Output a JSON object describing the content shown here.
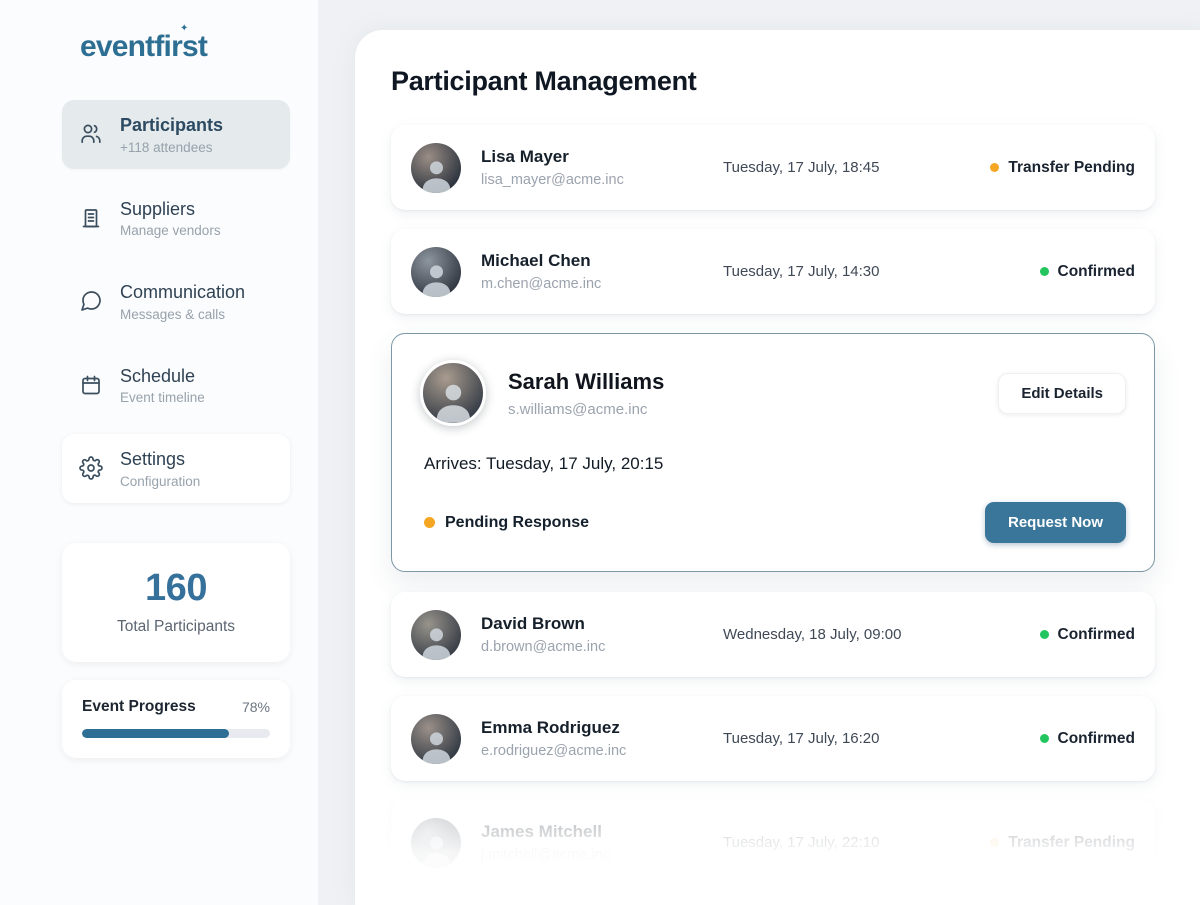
{
  "sidebar": {
    "logo": "eventfirst",
    "nav": [
      {
        "label": "Participants",
        "sublabel": "+118 attendees",
        "icon": "people-icon"
      },
      {
        "label": "Suppliers",
        "sublabel": "Manage vendors",
        "icon": "building-icon"
      },
      {
        "label": "Communication",
        "sublabel": "Messages & calls",
        "icon": "chat-icon"
      },
      {
        "label": "Schedule",
        "sublabel": "Event timeline",
        "icon": "calendar-icon"
      },
      {
        "label": "Settings",
        "sublabel": "Configuration",
        "icon": "gear-icon"
      }
    ],
    "stats": {
      "value": "160",
      "label": "Total Participants"
    },
    "progress": {
      "label": "Event Progress",
      "percent": 78,
      "percent_label": "78%"
    }
  },
  "main": {
    "title": "Participant Management",
    "rows": [
      {
        "name": "Lisa Mayer",
        "email": "lisa_mayer@acme.inc",
        "datetime": "Tuesday, 17 July, 18:45",
        "status_label": "Transfer Pending",
        "status": "pending"
      },
      {
        "name": "Michael Chen",
        "email": "m.chen@acme.inc",
        "datetime": "Tuesday, 17 July, 14:30",
        "status_label": "Confirmed",
        "status": "confirmed"
      },
      {
        "name": "David Brown",
        "email": "d.brown@acme.inc",
        "datetime": "Wednesday, 18 July, 09:00",
        "status_label": "Confirmed",
        "status": "confirmed"
      },
      {
        "name": "Emma Rodriguez",
        "email": "e.rodriguez@acme.inc",
        "datetime": "Tuesday, 17 July, 16:20",
        "status_label": "Confirmed",
        "status": "confirmed"
      },
      {
        "name": "James Mitchell",
        "email": "j.mitchell@acme.inc",
        "datetime": "Tuesday, 17 July, 22:10",
        "status_label": "Transfer Pending",
        "status": "pending"
      }
    ],
    "expanded": {
      "name": "Sarah Williams",
      "email": "s.williams@acme.inc",
      "edit_label": "Edit Details",
      "arrives": "Arrives: Tuesday, 17 July, 20:15",
      "status_label": "Pending Response",
      "status": "pending",
      "request_label": "Request Now"
    }
  },
  "colors": {
    "accent": "#2d6e93",
    "button": "#3a7699",
    "pending": "#f5a623",
    "confirmed": "#22c55e",
    "expanded_border": "#7c98a6"
  }
}
